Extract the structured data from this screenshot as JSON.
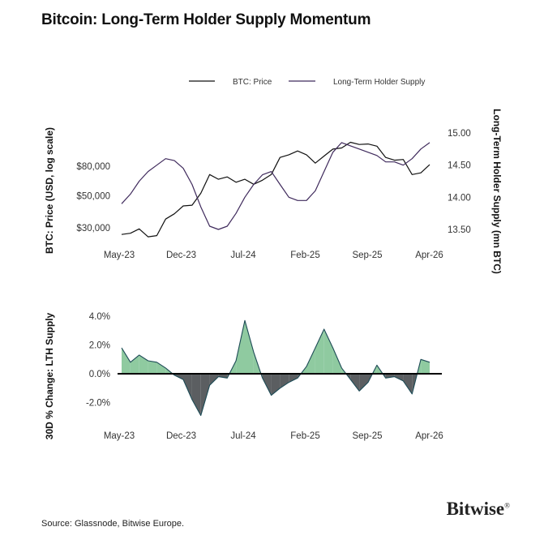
{
  "title": "Bitcoin: Long-Term Holder Supply Momentum",
  "source": "Source: Glassnode, Bitwise Europe.",
  "logo": {
    "text": "Bitwise",
    "mark": "®"
  },
  "colors": {
    "price": "#111111",
    "lth": "#3f2a5c",
    "pos_fill": "#8fcaa0",
    "neg_fill": "#5b5e61",
    "area_stroke": "#1d4b56"
  },
  "chart_data": [
    {
      "type": "line",
      "x_tick_labels": [
        "May-23",
        "Dec-23",
        "Jul-24",
        "Feb-25",
        "Sep-25",
        "Apr-26"
      ],
      "ylabel": "BTC: Price (USD, log scale)",
      "ylabel_right": "Long-Term Holder Supply (mn BTC)",
      "left_axis": {
        "scale": "log",
        "ticks": [
          30000,
          50000,
          80000
        ],
        "tick_labels": [
          "$30,000",
          "$50,000",
          "$80,000"
        ]
      },
      "right_axis": {
        "ticks": [
          13.5,
          14.0,
          14.5,
          15.0
        ],
        "tick_labels": [
          "13.50",
          "14.00",
          "14.50",
          "15.00"
        ]
      },
      "legend": "top-center",
      "x": [
        "2023-05",
        "2023-06",
        "2023-07",
        "2023-08",
        "2023-09",
        "2023-10",
        "2023-11",
        "2023-12",
        "2024-01",
        "2024-02",
        "2024-03",
        "2024-04",
        "2024-05",
        "2024-06",
        "2024-07",
        "2024-08",
        "2024-09",
        "2024-10",
        "2024-11",
        "2024-12",
        "2025-01",
        "2025-02",
        "2025-03",
        "2025-04",
        "2025-05",
        "2025-06",
        "2025-07",
        "2025-08",
        "2025-09",
        "2025-10",
        "2025-11",
        "2025-12",
        "2026-01",
        "2026-02",
        "2026-03",
        "2026-04"
      ],
      "series": [
        {
          "name": "BTC: Price",
          "axis": "left",
          "values": [
            27000,
            27500,
            29500,
            26000,
            26500,
            34500,
            37500,
            42500,
            43000,
            52000,
            70000,
            65000,
            67500,
            62000,
            65000,
            60000,
            64000,
            70000,
            92000,
            96000,
            102000,
            96000,
            84000,
            94000,
            105000,
            107000,
            117000,
            113000,
            114000,
            110000,
            92000,
            88000,
            89000,
            70000,
            72000,
            82000
          ]
        },
        {
          "name": "Long-Term Holder Supply",
          "axis": "right",
          "values": [
            13.9,
            14.05,
            14.25,
            14.4,
            14.5,
            14.6,
            14.57,
            14.45,
            14.2,
            13.85,
            13.55,
            13.5,
            13.55,
            13.75,
            14.0,
            14.2,
            14.35,
            14.4,
            14.2,
            14.0,
            13.95,
            13.95,
            14.1,
            14.4,
            14.7,
            14.85,
            14.8,
            14.75,
            14.7,
            14.65,
            14.55,
            14.55,
            14.5,
            14.6,
            14.75,
            14.85
          ]
        }
      ]
    },
    {
      "type": "area",
      "x_tick_labels": [
        "May-23",
        "Dec-23",
        "Jul-24",
        "Feb-25",
        "Sep-25",
        "Apr-26"
      ],
      "ylabel": "30D % Change: LTH Supply",
      "y_axis": {
        "ticks": [
          -2.0,
          0.0,
          2.0,
          4.0
        ],
        "tick_labels": [
          "-2.0%",
          "0.0%",
          "2.0%",
          "4.0%"
        ]
      },
      "x": [
        "2023-05",
        "2023-06",
        "2023-07",
        "2023-08",
        "2023-09",
        "2023-10",
        "2023-11",
        "2023-12",
        "2024-01",
        "2024-02",
        "2024-03",
        "2024-04",
        "2024-05",
        "2024-06",
        "2024-07",
        "2024-08",
        "2024-09",
        "2024-10",
        "2024-11",
        "2024-12",
        "2025-01",
        "2025-02",
        "2025-03",
        "2025-04",
        "2025-05",
        "2025-06",
        "2025-07",
        "2025-08",
        "2025-09",
        "2025-10",
        "2025-11",
        "2025-12",
        "2026-01",
        "2026-02",
        "2026-03",
        "2026-04"
      ],
      "series": [
        {
          "name": "30D % Change: LTH Supply",
          "values": [
            1.8,
            0.8,
            1.3,
            0.9,
            0.8,
            0.4,
            -0.1,
            -0.4,
            -1.8,
            -2.9,
            -0.8,
            -0.2,
            -0.3,
            0.9,
            3.7,
            1.5,
            -0.3,
            -1.5,
            -1.0,
            -0.6,
            -0.3,
            0.5,
            1.8,
            3.1,
            1.8,
            0.4,
            -0.4,
            -1.2,
            -0.6,
            0.6,
            -0.3,
            -0.2,
            -0.5,
            -1.4,
            1.0,
            0.8
          ]
        }
      ]
    }
  ]
}
